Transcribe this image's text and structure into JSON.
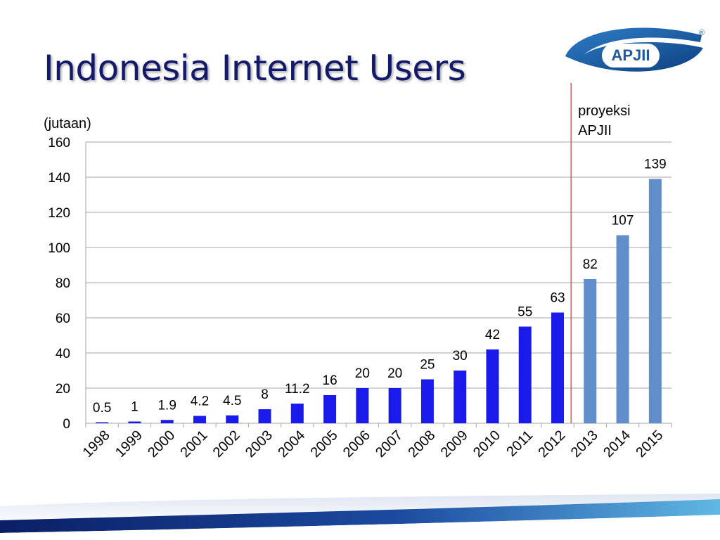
{
  "slide": {
    "title": "Indonesia Internet Users",
    "logo_text": "APJII",
    "logo_mark": "®"
  },
  "chart_data": {
    "type": "bar",
    "title": "Indonesia Internet Users",
    "unit_label": "(jutaan)",
    "categories": [
      "1998",
      "1999",
      "2000",
      "2001",
      "2002",
      "2003",
      "2004",
      "2005",
      "2006",
      "2007",
      "2008",
      "2009",
      "2010",
      "2011",
      "2012",
      "2013",
      "2014",
      "2015"
    ],
    "values": [
      0.5,
      1,
      1.9,
      4.2,
      4.5,
      8,
      11.2,
      16,
      20,
      20,
      25,
      30,
      42,
      55,
      63,
      82,
      107,
      139
    ],
    "value_labels": [
      "0.5",
      "1",
      "1.9",
      "4.2",
      "4.5",
      "8",
      "11.2",
      "16",
      "20",
      "20",
      "25",
      "30",
      "42",
      "55",
      "63",
      "82",
      "107",
      "139"
    ],
    "projected_from_index": 15,
    "ylim": [
      0,
      160
    ],
    "yticks": [
      0,
      20,
      40,
      60,
      80,
      100,
      120,
      140,
      160
    ],
    "grid": true,
    "projection_annotation": [
      "proyeksi",
      "APJII"
    ],
    "colors": {
      "actual": "#1a1aeb",
      "projected": "#5f8ecb",
      "projection_line": "#c0504d",
      "grid": "#a6a6a6",
      "title": "#14196b",
      "logo": "#1e5a9c"
    }
  }
}
